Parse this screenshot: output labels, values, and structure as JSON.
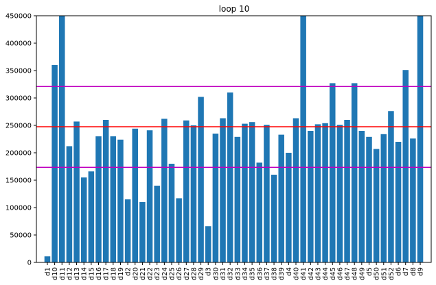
{
  "chart_data": {
    "type": "bar",
    "title": "loop 10",
    "xlabel": "",
    "ylabel": "",
    "categories": [
      "d1",
      "d10",
      "d11",
      "d12",
      "d13",
      "d14",
      "d15",
      "d16",
      "d17",
      "d18",
      "d19",
      "d2",
      "d20",
      "d21",
      "d22",
      "d23",
      "d24",
      "d25",
      "d26",
      "d27",
      "d28",
      "d29",
      "d3",
      "d30",
      "d31",
      "d32",
      "d33",
      "d34",
      "d35",
      "d36",
      "d37",
      "d38",
      "d39",
      "d4",
      "d40",
      "d41",
      "d42",
      "d43",
      "d44",
      "d45",
      "d46",
      "d47",
      "d48",
      "d49",
      "d5",
      "d50",
      "d51",
      "d52",
      "d6",
      "d7",
      "d8",
      "d9"
    ],
    "values": [
      11000,
      360000,
      450000,
      212000,
      257000,
      155000,
      166000,
      230000,
      260000,
      230000,
      224000,
      115000,
      244000,
      110000,
      241000,
      140000,
      262000,
      180000,
      117000,
      259000,
      250000,
      302000,
      66000,
      235000,
      263000,
      310000,
      229000,
      253000,
      256000,
      182000,
      251000,
      160000,
      233000,
      200000,
      263000,
      450000,
      240000,
      252000,
      254000,
      327000,
      251000,
      260000,
      327000,
      240000,
      229000,
      207000,
      234000,
      276000,
      220000,
      351000,
      226000,
      450000
    ],
    "ylim": [
      0,
      450000
    ],
    "yticks": [
      0,
      50000,
      100000,
      150000,
      200000,
      250000,
      300000,
      350000,
      400000,
      450000
    ],
    "ytick_labels": [
      "0",
      "50000",
      "100000",
      "150000",
      "200000",
      "250000",
      "300000",
      "350000",
      "400000",
      "450000"
    ],
    "bar_color": "#1f77b4",
    "reference_lines": [
      {
        "value": 247500,
        "color": "#ff0000"
      },
      {
        "value": 321000,
        "color": "#bf00bf"
      },
      {
        "value": 173500,
        "color": "#bf00bf"
      }
    ],
    "grid": false,
    "legend": "none"
  }
}
